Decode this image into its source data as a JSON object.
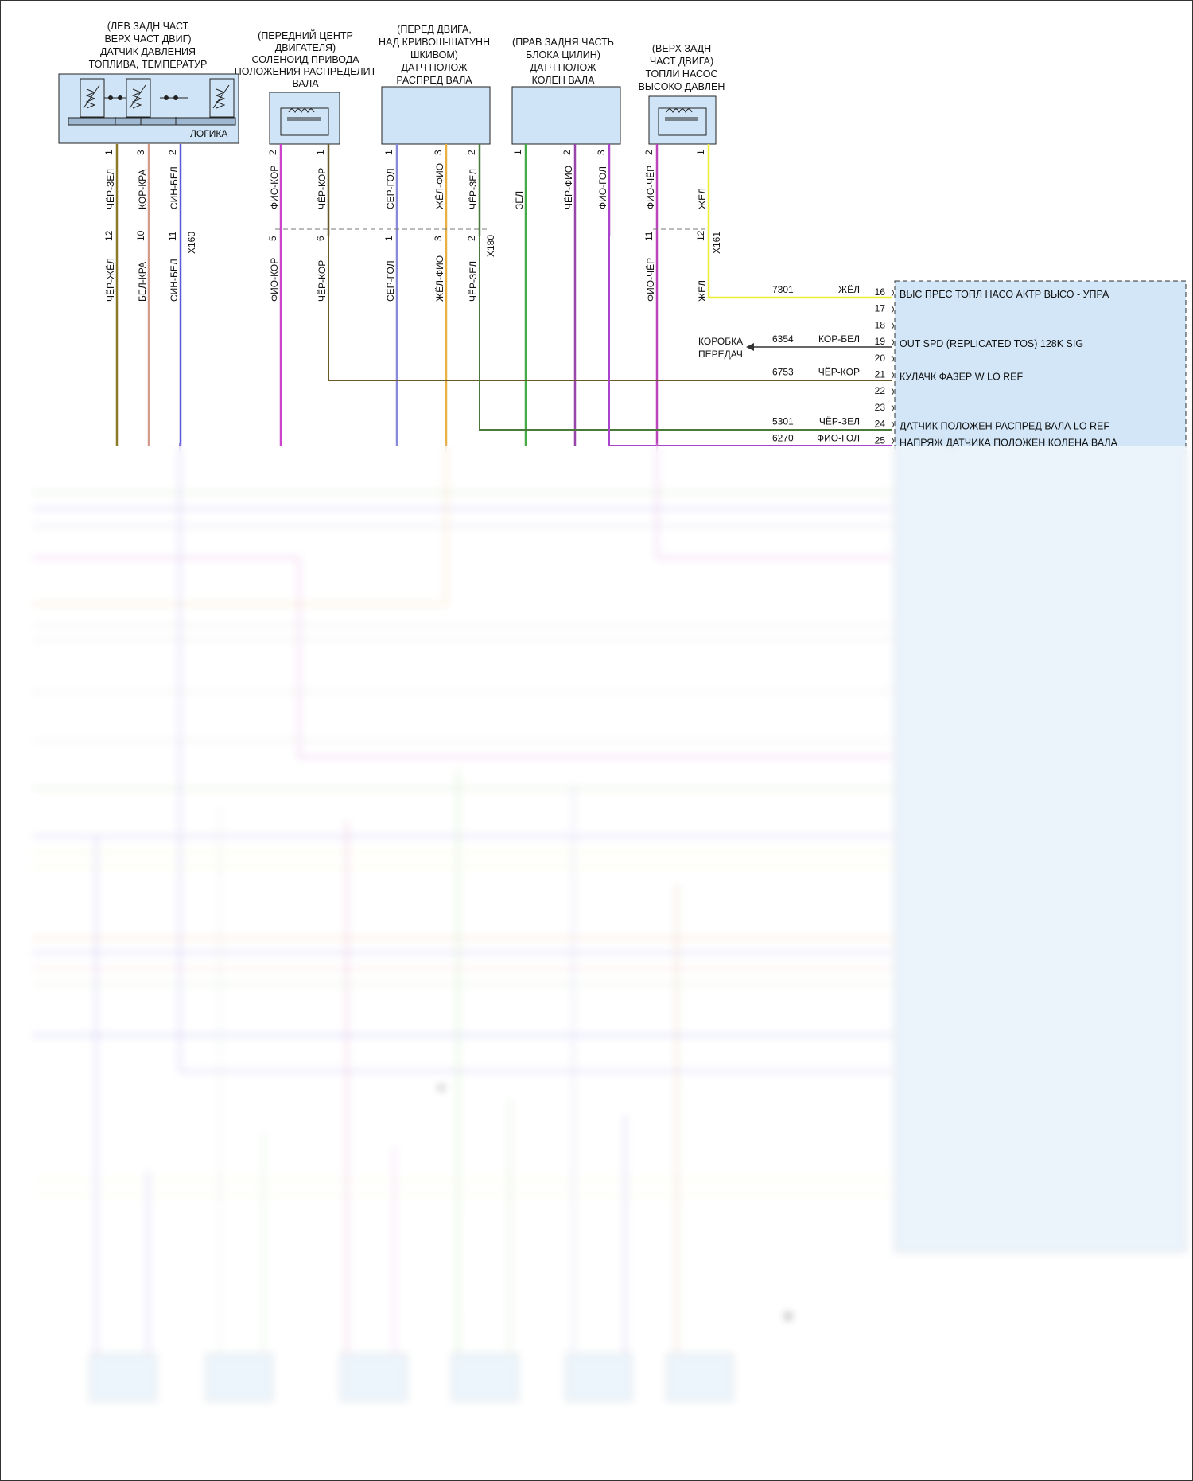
{
  "components": [
    {
      "id": "fuel-sensor",
      "label": [
        "(ЛЕВ ЗАДН ЧАСТ",
        "ВЕРХ ЧАСТ ДВИГ)",
        "ДАТЧИК ДАВЛЕНИЯ",
        "ТОПЛИВА, ТЕМПЕРАТУР"
      ],
      "logic_label": "ЛОГИКА"
    },
    {
      "id": "cam-solenoid",
      "label": [
        "(ПЕРЕДНИЙ ЦЕНТР",
        "ДВИГАТЕЛЯ)",
        "СОЛЕНОИД ПРИВОДА",
        "ПОЛОЖЕНИЯ РАСПРЕДЕЛИТ",
        "ВАЛА"
      ]
    },
    {
      "id": "cam-sensor",
      "label": [
        "(ПЕРЕД ДВИГА,",
        "НАД КРИВОШ-ШАТУНН",
        "ШКИВОМ)",
        "ДАТЧ ПОЛОЖ",
        "РАСПРЕД ВАЛА"
      ]
    },
    {
      "id": "crank-sensor",
      "label": [
        "(ПРАВ ЗАДНЯ ЧАСТЬ",
        "БЛОКА ЦИЛИН)",
        "ДАТЧ ПОЛОЖ",
        "КОЛЕН ВАЛА"
      ]
    },
    {
      "id": "hp-pump",
      "label": [
        "(ВЕРХ ЗАДН",
        "ЧАСТ ДВИГА)",
        "ТОПЛИ НАСОС",
        "ВЫСОКО ДАВЛЕН"
      ]
    }
  ],
  "wires_top": [
    {
      "pin": "1",
      "color_label": "ЧЁР-ЗЕЛ",
      "conn_pin": "12",
      "harness_label": "ЧЁР-ЖЁЛ",
      "hex": "#8a7a2a"
    },
    {
      "pin": "3",
      "color_label": "КОР-КРА",
      "conn_pin": "10",
      "harness_label": "БЕЛ-КРА",
      "hex": "#d49a8a"
    },
    {
      "pin": "2",
      "color_label": "СИН-БЕЛ",
      "conn_pin": "11",
      "harness_label": "СИН-БЕЛ",
      "hex": "#5a5ad8"
    },
    {
      "pin": "2",
      "color_label": "ФИО-КОР",
      "conn_pin": "5",
      "harness_label": "ФИО-КОР",
      "hex": "#cc44cc"
    },
    {
      "pin": "1",
      "color_label": "ЧЁР-КОР",
      "conn_pin": "6",
      "harness_label": "ЧЁР-КОР",
      "hex": "#6a5a2a"
    },
    {
      "pin": "1",
      "color_label": "СЕР-ГОЛ",
      "conn_pin": "1",
      "harness_label": "СЕР-ГОЛ",
      "hex": "#8888dd"
    },
    {
      "pin": "3",
      "color_label": "ЖЁЛ-ФИО",
      "conn_pin": "3",
      "harness_label": "ЖЁЛ-ФИО",
      "hex": "#e8b040"
    },
    {
      "pin": "2",
      "color_label": "ЧЁР-ЗЕЛ",
      "conn_pin": "2",
      "harness_label": "ЧЁР-ЗЕЛ",
      "hex": "#4a7a3a"
    },
    {
      "pin": "1",
      "color_label": "ЗЕЛ",
      "conn_pin": "",
      "harness_label": "",
      "hex": "#44aa44"
    },
    {
      "pin": "2",
      "color_label": "ЧЁР-ФИО",
      "conn_pin": "",
      "harness_label": "",
      "hex": "#9944aa"
    },
    {
      "pin": "3",
      "color_label": "ФИО-ГОЛ",
      "conn_pin": "",
      "harness_label": "",
      "hex": "#aa44cc"
    },
    {
      "pin": "2",
      "color_label": "ФИО-ЧЁР",
      "conn_pin": "11",
      "harness_label": "ФИО-ЧЁР",
      "hex": "#bb44bb"
    },
    {
      "pin": "1",
      "color_label": "ЖЁЛ",
      "conn_pin": "12",
      "harness_label": "ЖЁЛ",
      "hex": "#eeee33"
    }
  ],
  "connectors": [
    "X160",
    "X180",
    "X161"
  ],
  "ecm_rows": [
    {
      "circuit": "7301",
      "color": "ЖЁЛ",
      "pin": "16",
      "desc": "ВЫС ПРЕС ТОПЛ НАСО АКТР ВЫСО - УПРА"
    },
    {
      "circuit": "",
      "color": "",
      "pin": "17",
      "desc": ""
    },
    {
      "circuit": "",
      "color": "",
      "pin": "18",
      "desc": ""
    },
    {
      "circuit": "6354",
      "color": "КОР-БЕЛ",
      "pin": "19",
      "desc": "OUT SPD (REPLICATED TOS) 128K SIG"
    },
    {
      "circuit": "",
      "color": "",
      "pin": "20",
      "desc": ""
    },
    {
      "circuit": "6753",
      "color": "ЧЁР-КОР",
      "pin": "21",
      "desc": "КУЛАЧК ФАЗЕР W LO REF"
    },
    {
      "circuit": "",
      "color": "",
      "pin": "22",
      "desc": ""
    },
    {
      "circuit": "",
      "color": "",
      "pin": "23",
      "desc": ""
    },
    {
      "circuit": "5301",
      "color": "ЧЁР-ЗЕЛ",
      "pin": "24",
      "desc": "ДАТЧИК ПОЛОЖЕН РАСПРЕД ВАЛА LO REF"
    },
    {
      "circuit": "6270",
      "color": "ФИО-ГОЛ",
      "pin": "25",
      "desc": "НАПРЯЖ ДАТЧИКА ПОЛОЖЕН КОЛЕНА ВАЛА"
    }
  ],
  "gearbox_label": [
    "КОРОБКА",
    "ПЕРЕДАЧ"
  ]
}
